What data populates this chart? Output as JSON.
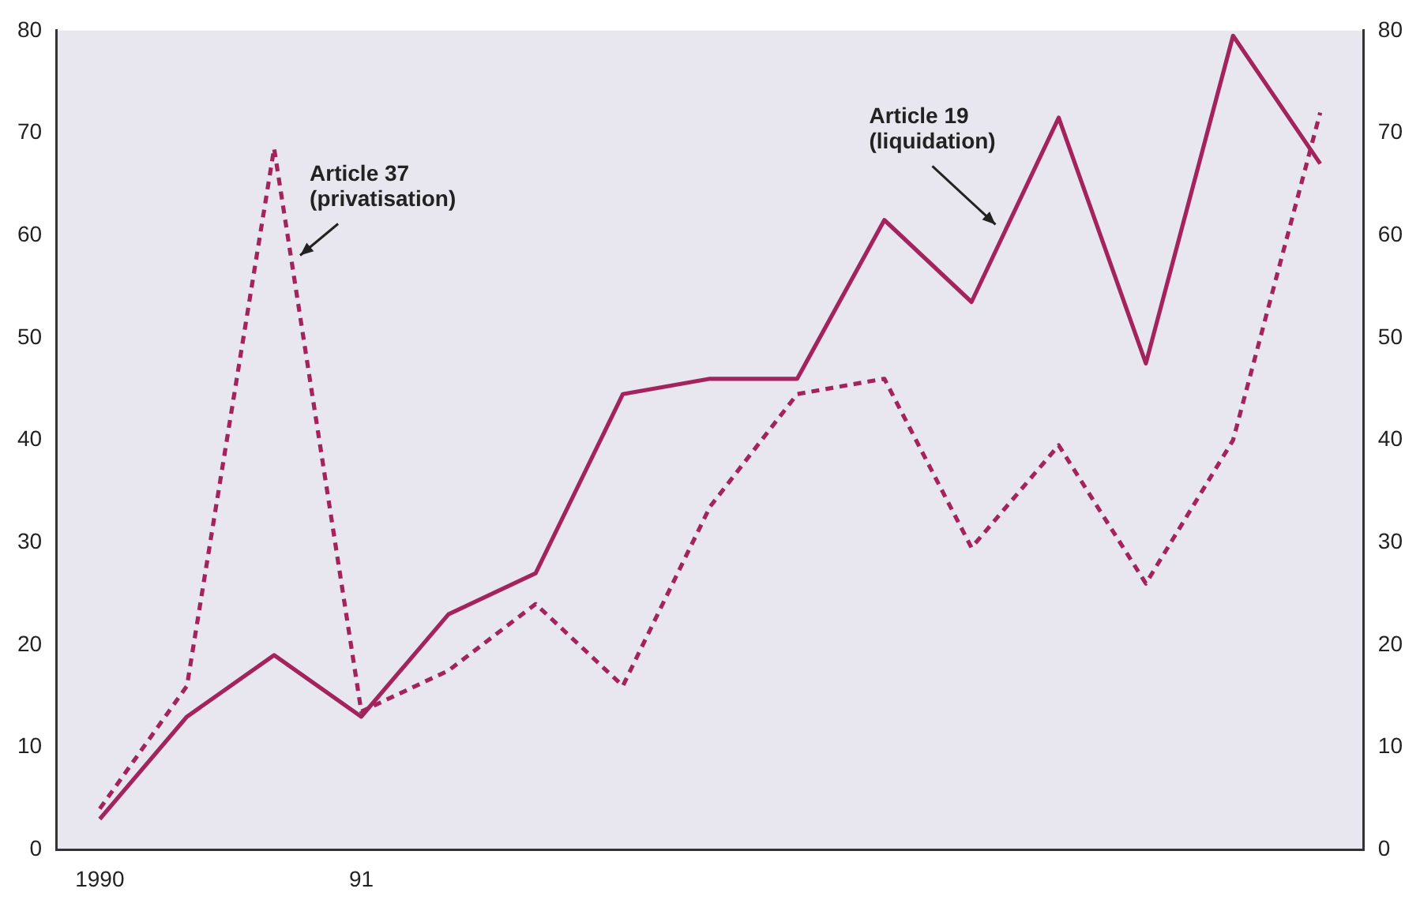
{
  "chart_data": {
    "type": "line",
    "categories": [
      "1990",
      null,
      null,
      "91",
      null,
      null,
      null,
      null,
      null,
      null,
      null,
      null,
      null,
      null,
      null
    ],
    "series": [
      {
        "color": "#a3245c",
        "line_style": "solid",
        "values": [
          3,
          13,
          19,
          13,
          23,
          27,
          44.5,
          46,
          46,
          61.5,
          53.5,
          71.5,
          47.5,
          79.5,
          67
        ]
      },
      {
        "color": "#a3245c",
        "line_style": "dashed",
        "values": [
          4,
          16,
          68.5,
          13.5,
          17.5,
          24,
          16,
          33.5,
          44.5,
          46,
          29.5,
          39.5,
          26,
          40,
          72
        ]
      }
    ],
    "ylim": [
      0,
      80
    ],
    "yticks": [
      0,
      10,
      20,
      30,
      40,
      50,
      60,
      70,
      80
    ],
    "y2lim": [
      0,
      80
    ],
    "y2ticks": [
      0,
      10,
      20,
      30,
      40,
      50,
      60,
      70,
      80
    ],
    "grid": false,
    "legend": false,
    "marker": "none",
    "annotations": [
      "Article 37\n(privatisation)",
      "Article 19\n(liquidation)"
    ]
  }
}
